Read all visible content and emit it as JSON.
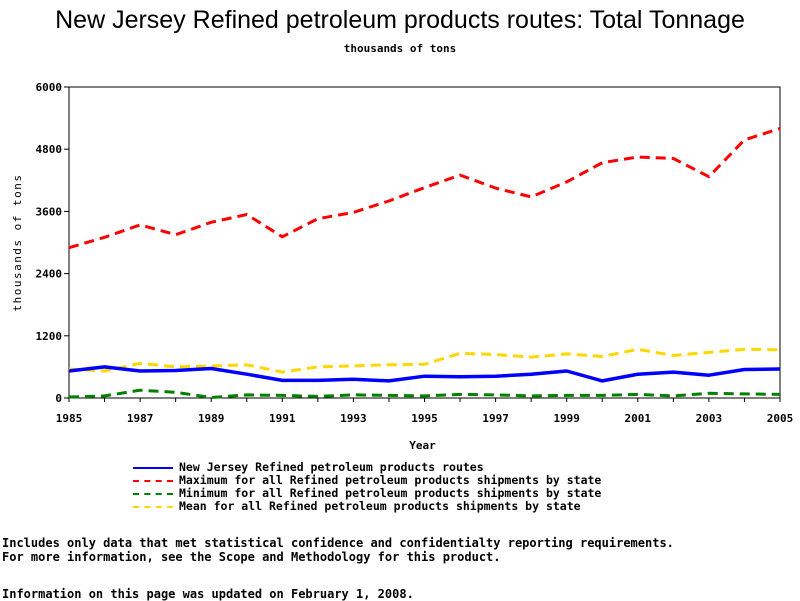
{
  "chart_data": {
    "type": "line",
    "title": "New Jersey Refined petroleum products routes: Total Tonnage",
    "subtitle": "thousands of tons",
    "xlabel": "Year",
    "ylabel": "thousands of tons",
    "xlim": [
      1985,
      2005
    ],
    "ylim": [
      0,
      6000
    ],
    "x_ticks": [
      1985,
      1987,
      1989,
      1991,
      1993,
      1995,
      1997,
      1999,
      2001,
      2003,
      2005
    ],
    "y_ticks": [
      0,
      1200,
      2400,
      3600,
      4800,
      6000
    ],
    "x": [
      1985,
      1986,
      1987,
      1988,
      1989,
      1990,
      1991,
      1992,
      1993,
      1994,
      1995,
      1996,
      1997,
      1998,
      1999,
      2000,
      2001,
      2002,
      2003,
      2004,
      2005
    ],
    "series": [
      {
        "name": "New Jersey Refined petroleum products routes",
        "color": "#0000ff",
        "style": "solid",
        "values": [
          520,
          600,
          520,
          530,
          570,
          460,
          340,
          340,
          360,
          330,
          420,
          410,
          420,
          460,
          520,
          330,
          460,
          500,
          440,
          550,
          560
        ]
      },
      {
        "name": "Maximum for all Refined petroleum products shipments by state",
        "color": "#ff0000",
        "style": "dashed",
        "values": [
          2900,
          3100,
          3340,
          3150,
          3390,
          3540,
          3110,
          3460,
          3580,
          3800,
          4060,
          4300,
          4050,
          3880,
          4170,
          4540,
          4650,
          4620,
          4270,
          4980,
          5200
        ]
      },
      {
        "name": "Minimum for all Refined petroleum products shipments by state",
        "color": "#008000",
        "style": "dashed",
        "values": [
          20,
          40,
          150,
          110,
          10,
          60,
          50,
          30,
          60,
          50,
          40,
          70,
          60,
          40,
          50,
          50,
          70,
          40,
          90,
          80,
          70
        ]
      },
      {
        "name": "Mean for all Refined petroleum products shipments by state",
        "color": "#ffd700",
        "style": "dashed",
        "values": [
          560,
          520,
          670,
          600,
          620,
          640,
          500,
          600,
          620,
          640,
          650,
          860,
          840,
          790,
          850,
          800,
          940,
          820,
          880,
          940,
          930
        ]
      }
    ]
  },
  "notes": {
    "line1": "Includes only data that met statistical confidence and confidentialty reporting requirements.",
    "line2": "For more information, see the Scope and Methodology for this product.",
    "updated": "Information on this page was updated on February 1, 2008."
  }
}
